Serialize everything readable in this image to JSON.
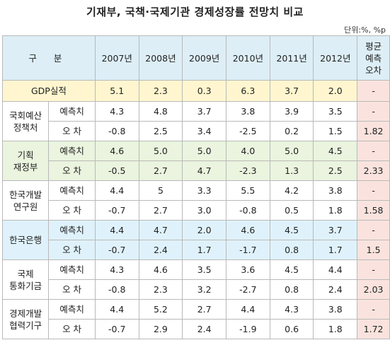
{
  "title": "기재부, 국책·국제기관 경제성장률 전망치 비교",
  "unit": "단위:%, %p",
  "header": {
    "gubun": "구 분",
    "years": [
      "2007년",
      "2008년",
      "2009년",
      "2010년",
      "2011년",
      "2012년"
    ],
    "avg_line1": "평균",
    "avg_line2": "예측",
    "avg_line3": "오차"
  },
  "gdp": {
    "label": "GDP실적",
    "values": [
      "5.1",
      "2.3",
      "0.3",
      "6.3",
      "3.7",
      "2.0"
    ],
    "avg": "-"
  },
  "groups": [
    {
      "name_l1": "국회예산",
      "name_l2": "정책처",
      "forecast_label": "예측치",
      "error_label": "오 차",
      "forecast": [
        "4.3",
        "4.8",
        "3.7",
        "3.8",
        "3.9",
        "3.5"
      ],
      "forecast_avg": "-",
      "error": [
        "-0.8",
        "2.5",
        "3.4",
        "-2.5",
        "0.2",
        "1.5"
      ],
      "error_avg": "1.82"
    },
    {
      "name_l1": "기획",
      "name_l2": "재정부",
      "forecast_label": "예측치",
      "error_label": "오 차",
      "forecast": [
        "4.6",
        "5.0",
        "5.0",
        "4.0",
        "5.0",
        "4.5"
      ],
      "forecast_avg": "-",
      "error": [
        "-0.5",
        "2.7",
        "4.7",
        "-2.3",
        "1.3",
        "2.5"
      ],
      "error_avg": "2.33"
    },
    {
      "name_l1": "한국개발",
      "name_l2": "연구원",
      "forecast_label": "예측치",
      "error_label": "오 차",
      "forecast": [
        "4.4",
        "5",
        "3.3",
        "5.5",
        "4.2",
        "3.8"
      ],
      "forecast_avg": "-",
      "error": [
        "-0.7",
        "2.7",
        "3.0",
        "-0.8",
        "0.5",
        "1.8"
      ],
      "error_avg": "1.58"
    },
    {
      "name_l1": "한국은행",
      "name_l2": "",
      "forecast_label": "예측치",
      "error_label": "오 차",
      "forecast": [
        "4.4",
        "4.7",
        "2.0",
        "4.6",
        "4.5",
        "3.7"
      ],
      "forecast_avg": "-",
      "error": [
        "-0.7",
        "2.4",
        "1.7",
        "-1.7",
        "0.8",
        "1.7"
      ],
      "error_avg": "1.5"
    },
    {
      "name_l1": "국제",
      "name_l2": "통화기금",
      "forecast_label": "예측치",
      "error_label": "오 차",
      "forecast": [
        "4.3",
        "4.6",
        "3.5",
        "3.6",
        "4.5",
        "4.4"
      ],
      "forecast_avg": "-",
      "error": [
        "-0.8",
        "2.3",
        "3.2",
        "-2.7",
        "0.8",
        "2.4"
      ],
      "error_avg": "2.03"
    },
    {
      "name_l1": "경제개발",
      "name_l2": "협력기구",
      "forecast_label": "예측치",
      "error_label": "오 차",
      "forecast": [
        "4.4",
        "5.2",
        "2.7",
        "4.4",
        "4.3",
        "3.8"
      ],
      "forecast_avg": "-",
      "error": [
        "-0.7",
        "2.9",
        "2.4",
        "-1.9",
        "0.6",
        "1.8"
      ],
      "error_avg": "1.72"
    }
  ]
}
